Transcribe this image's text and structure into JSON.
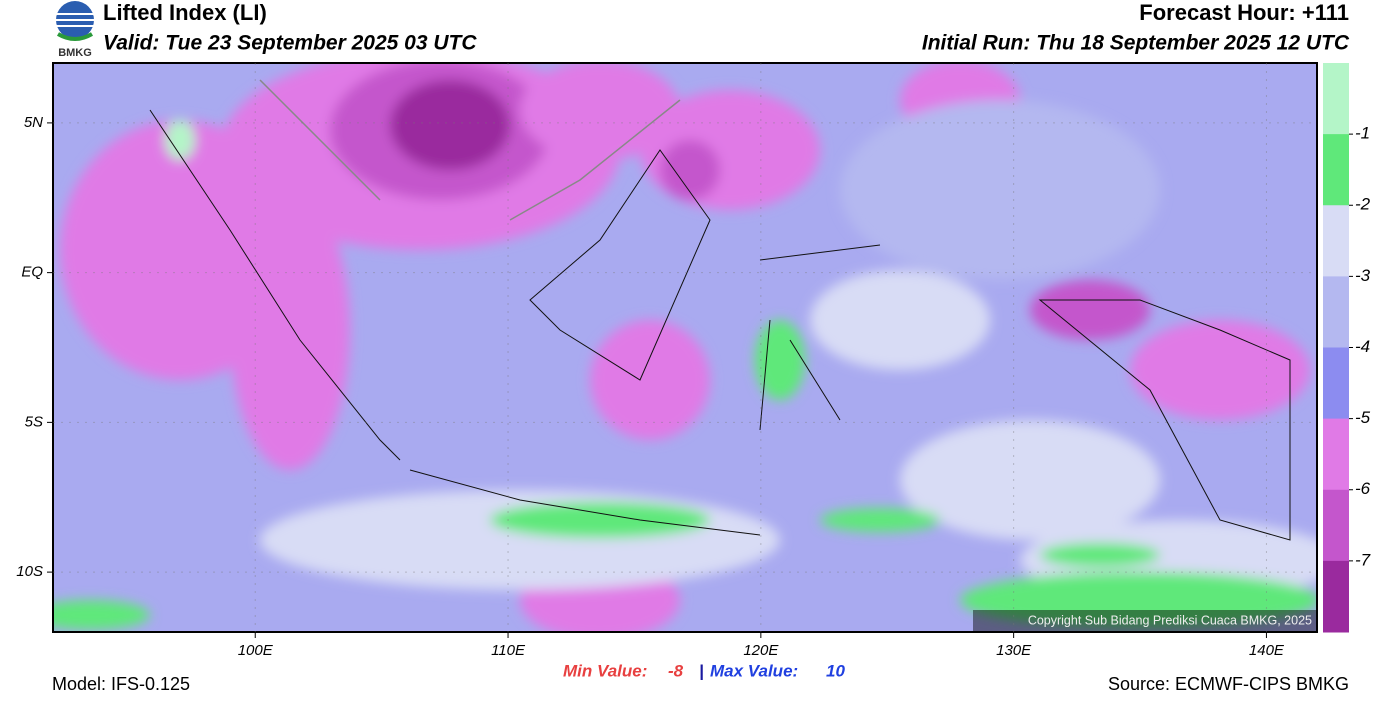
{
  "header": {
    "logo": "BMKG",
    "title": "Lifted Index (LI)",
    "valid": "Valid: Tue 23 September 2025 03 UTC",
    "forecast_hour": "Forecast Hour: +111",
    "initial_run": "Initial Run: Thu 18 September 2025 12 UTC"
  },
  "map": {
    "lon_range": [
      92,
      142
    ],
    "lat_range": [
      7,
      -12
    ],
    "lon_ticks": [
      {
        "value": 100,
        "label": "100E"
      },
      {
        "value": 110,
        "label": "110E"
      },
      {
        "value": 120,
        "label": "120E"
      },
      {
        "value": 130,
        "label": "130E"
      },
      {
        "value": 140,
        "label": "140E"
      }
    ],
    "lat_ticks": [
      {
        "value": 5,
        "label": "5N"
      },
      {
        "value": 0,
        "label": "EQ"
      },
      {
        "value": -5,
        "label": "5S"
      },
      {
        "value": -10,
        "label": "10S"
      }
    ],
    "copyright": "Copyright Sub Bidang Prediksi Cuaca BMKG, 2025"
  },
  "colorbar": {
    "levels": [
      -1,
      -2,
      -3,
      -4,
      -5,
      -6,
      -7
    ],
    "colors": [
      "#b4f5c8",
      "#5fe87a",
      "#d8dcf5",
      "#b4b8f0",
      "#8c8cf0",
      "#e07ae6",
      "#c456cc",
      "#9a2a9e"
    ]
  },
  "footer": {
    "model": "Model: IFS-0.125",
    "source": "Source: ECMWF-CIPS BMKG",
    "min_label": "Min Value:",
    "min_value": -8,
    "separator": "|",
    "max_label": "Max Value:",
    "max_value": 10
  }
}
